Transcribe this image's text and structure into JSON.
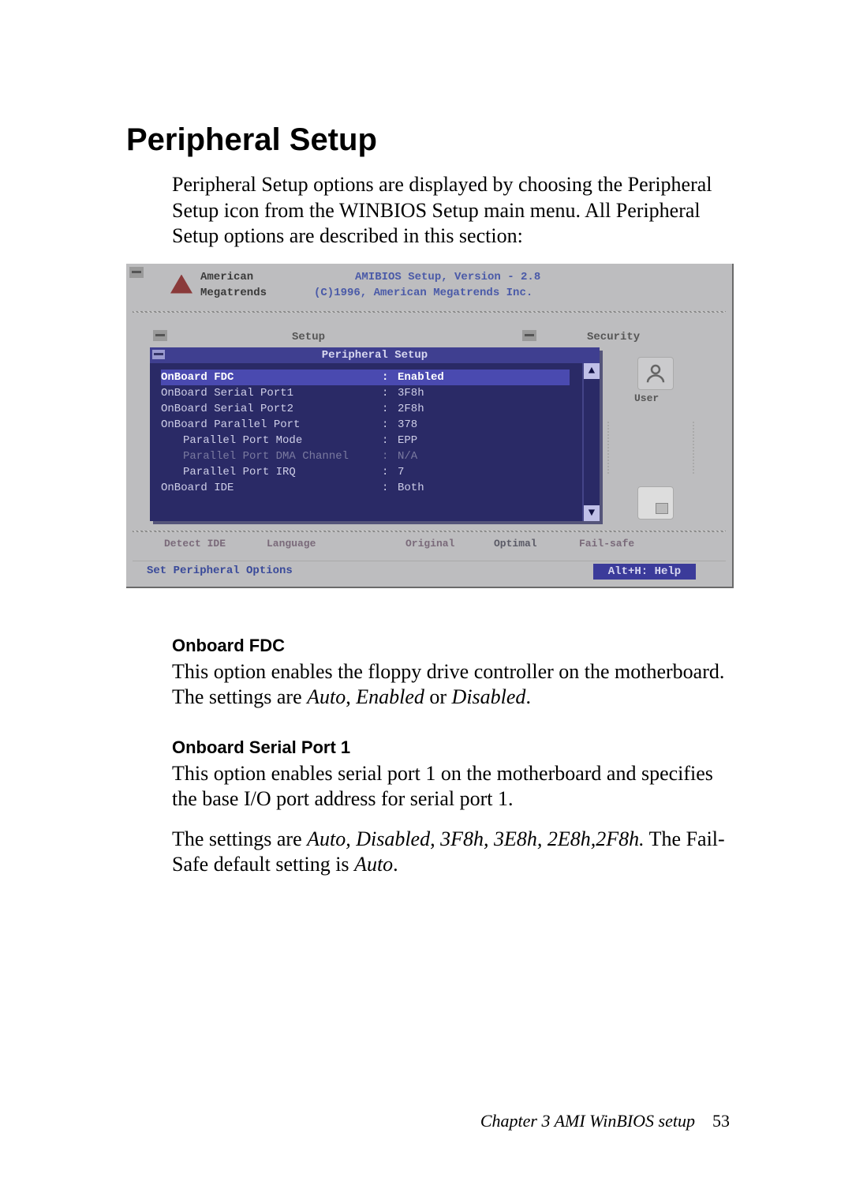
{
  "title": "Peripheral Setup",
  "intro": "Peripheral Setup options are displayed by choosing the Peripheral Setup icon from the WINBIOS Setup main menu.  All Peripheral Setup options are described in this section:",
  "bios": {
    "brand1": "American",
    "brand2": "Megatrends",
    "title1": "AMIBIOS Setup, Version - 2.8",
    "title2": "(C)1996, American Megatrends Inc.",
    "menu_setup": "Setup",
    "menu_security": "Security",
    "window_title": "Peripheral Setup",
    "rows": [
      {
        "label": "OnBoard FDC",
        "value": "Enabled",
        "sel": true,
        "indent": false,
        "dim": false
      },
      {
        "label": "OnBoard Serial Port1",
        "value": "3F8h",
        "sel": false,
        "indent": false,
        "dim": false
      },
      {
        "label": "OnBoard Serial Port2",
        "value": "2F8h",
        "sel": false,
        "indent": false,
        "dim": false
      },
      {
        "label": "OnBoard Parallel Port",
        "value": "378",
        "sel": false,
        "indent": false,
        "dim": false
      },
      {
        "label": "Parallel Port Mode",
        "value": "EPP",
        "sel": false,
        "indent": true,
        "dim": false
      },
      {
        "label": "Parallel Port DMA Channel",
        "value": "N/A",
        "sel": false,
        "indent": true,
        "dim": true
      },
      {
        "label": "Parallel Port IRQ",
        "value": "7",
        "sel": false,
        "indent": true,
        "dim": false
      },
      {
        "label": "OnBoard IDE",
        "value": "Both",
        "sel": false,
        "indent": false,
        "dim": false
      }
    ],
    "icon_label": "User",
    "bottom": {
      "b1": "Detect IDE",
      "b2": "Language",
      "b3": "Original",
      "b4": "Optimal",
      "b5": "Fail-safe"
    },
    "status": "Set Peripheral Options",
    "help": "Alt+H: Help",
    "colors": {
      "panel": "#bdbdbf",
      "win": "#2a2a66",
      "winbar": "#3f3f90",
      "text": "#cfcfe8",
      "sel": "#4a4ab0",
      "helpbg": "#3b3b9a"
    }
  },
  "sections": [
    {
      "head": "Onboard FDC",
      "paras": [
        {
          "runs": [
            {
              "t": "This option enables the floppy drive controller on the motherboard. The settings are "
            },
            {
              "t": "Auto",
              "i": true
            },
            {
              "t": ", "
            },
            {
              "t": "Enabled",
              "i": true
            },
            {
              "t": " or "
            },
            {
              "t": "Disabled",
              "i": true
            },
            {
              "t": "."
            }
          ]
        }
      ]
    },
    {
      "head": "Onboard Serial Port 1",
      "paras": [
        {
          "runs": [
            {
              "t": "This option enables serial port 1 on the motherboard and specifies the base I/O port address for serial port 1."
            }
          ]
        },
        {
          "runs": [
            {
              "t": "The settings are "
            },
            {
              "t": "Auto, Disabled, 3F8h, 3E8h, 2E8h,2F8h.",
              "i": true
            },
            {
              "t": " The Fail-Safe default setting is "
            },
            {
              "t": "Auto",
              "i": true
            },
            {
              "t": "."
            }
          ]
        }
      ]
    }
  ],
  "footer": {
    "chap": "Chapter 3  AMI WinBIOS  setup",
    "page": "53"
  }
}
